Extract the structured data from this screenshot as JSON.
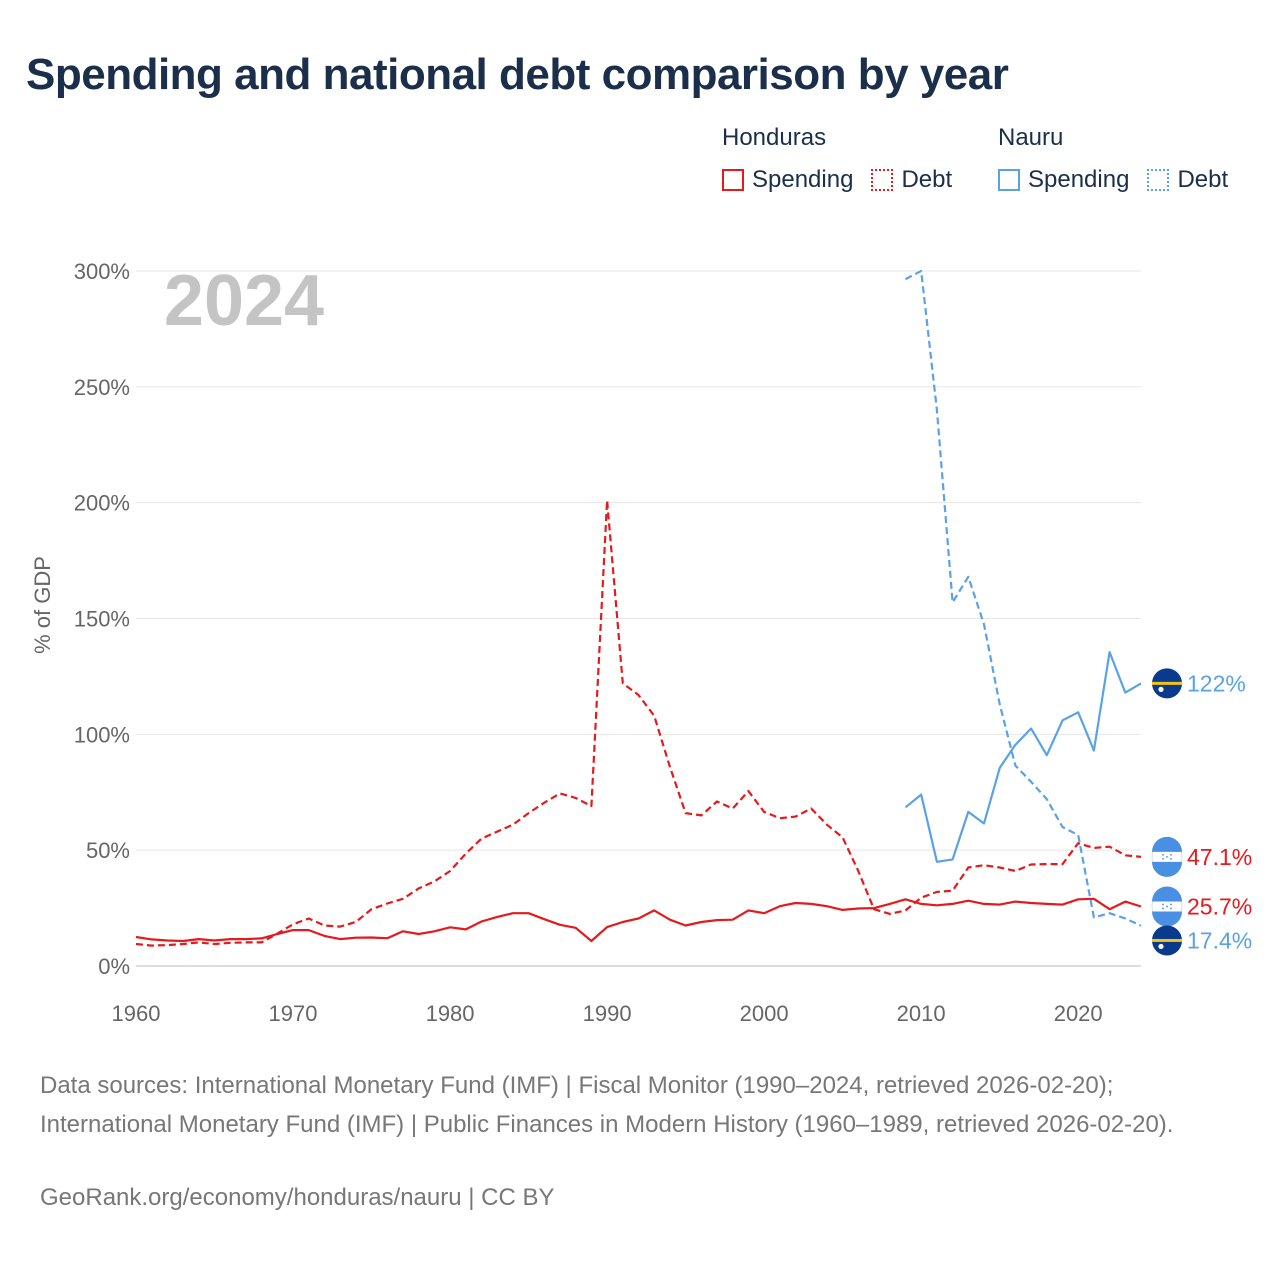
{
  "title": "Spending and national debt comparison by year",
  "legend": {
    "groups": [
      {
        "country": "Honduras",
        "color": "#e41a1c",
        "spending_label": "Spending",
        "debt_label": "Debt"
      },
      {
        "country": "Nauru",
        "color": "#5aa2e6",
        "spending_label": "Spending",
        "debt_label": "Debt"
      }
    ]
  },
  "year_watermark": "2024",
  "sources": "Data sources: International Monetary Fund (IMF) | Fiscal Monitor (1990–2024, retrieved 2026-02-20); International Monetary Fund (IMF) | Public Finances in Modern History (1960–1989, retrieved 2026-02-20).",
  "site": "GeoRank.org/economy/honduras/nauru | CC BY",
  "chart_data": {
    "type": "line",
    "ylabel": "% of GDP",
    "xlabel": "",
    "xlim": [
      1960,
      2024
    ],
    "ylim": [
      0,
      300
    ],
    "x_ticks": [
      1960,
      1970,
      1980,
      1990,
      2000,
      2010,
      2020
    ],
    "x_tick_labels": [
      "1960",
      "1970",
      "1980",
      "1990",
      "2000",
      "2010",
      "2020"
    ],
    "y_ticks": [
      0,
      50,
      100,
      150,
      200,
      250,
      300
    ],
    "y_tick_labels": [
      "0%",
      "50%",
      "100%",
      "150%",
      "200%",
      "250%",
      "300%"
    ],
    "grid": true,
    "series": [
      {
        "name": "Honduras Spending",
        "country": "Honduras",
        "kind": "spending",
        "dash": "solid",
        "color": "#e41a1c",
        "x": [
          1960,
          1961,
          1962,
          1963,
          1964,
          1965,
          1966,
          1967,
          1968,
          1969,
          1970,
          1971,
          1972,
          1973,
          1974,
          1975,
          1976,
          1977,
          1978,
          1979,
          1980,
          1981,
          1982,
          1983,
          1984,
          1985,
          1986,
          1987,
          1988,
          1989,
          1990,
          1991,
          1992,
          1993,
          1994,
          1995,
          1996,
          1997,
          1998,
          1999,
          2000,
          2001,
          2002,
          2003,
          2004,
          2005,
          2006,
          2007,
          2008,
          2009,
          2010,
          2011,
          2012,
          2013,
          2014,
          2015,
          2016,
          2017,
          2018,
          2019,
          2020,
          2021,
          2022,
          2023,
          2024
        ],
        "values": [
          12.5,
          11.5,
          11,
          10.8,
          11.6,
          11,
          11.6,
          11.6,
          11.9,
          13.8,
          15.5,
          15.5,
          13,
          11.6,
          12.2,
          12.3,
          12,
          15,
          13.8,
          15,
          16.7,
          15.8,
          19.2,
          21.2,
          22.8,
          22.8,
          20.2,
          17.8,
          16.5,
          10.8,
          16.8,
          19,
          20.5,
          24,
          20,
          17.5,
          19,
          19.8,
          20,
          24,
          22.8,
          25.8,
          27.2,
          26.8,
          25.8,
          24.2,
          24.8,
          25,
          26.8,
          28.8,
          26.8,
          26.2,
          26.8,
          28.2,
          26.8,
          26.5,
          27.8,
          27.2,
          26.8,
          26.5,
          28.8,
          29,
          24.5,
          27.8,
          25.7
        ]
      },
      {
        "name": "Honduras Debt",
        "country": "Honduras",
        "kind": "debt",
        "dash": "dashed",
        "color": "#e41a1c",
        "x": [
          1960,
          1961,
          1962,
          1963,
          1964,
          1965,
          1966,
          1967,
          1968,
          1969,
          1970,
          1971,
          1972,
          1973,
          1974,
          1975,
          1976,
          1977,
          1978,
          1979,
          1980,
          1981,
          1982,
          1983,
          1984,
          1985,
          1986,
          1987,
          1988,
          1989,
          1990,
          1991,
          1992,
          1993,
          1994,
          1995,
          1996,
          1997,
          1998,
          1999,
          2000,
          2001,
          2002,
          2003,
          2004,
          2005,
          2006,
          2007,
          2008,
          2009,
          2010,
          2011,
          2012,
          2013,
          2014,
          2015,
          2016,
          2017,
          2018,
          2019,
          2020,
          2021,
          2022,
          2023,
          2024
        ],
        "values": [
          9.5,
          8.8,
          9,
          9.5,
          10.2,
          9.5,
          10,
          10.2,
          10.2,
          14,
          18,
          20.5,
          17.5,
          17,
          19,
          24.5,
          27,
          29,
          33.5,
          36.5,
          41,
          48.5,
          55,
          58,
          61,
          66,
          70.5,
          74.5,
          72.5,
          69,
          201,
          122,
          117,
          108,
          86,
          66,
          65,
          71,
          68,
          75.5,
          66.5,
          63.8,
          64.5,
          68,
          61,
          55.5,
          41,
          24.5,
          22.5,
          24,
          29.5,
          32,
          32.5,
          42.5,
          43.5,
          42.5,
          41,
          43.8,
          44,
          44,
          53,
          51,
          51.5,
          47.8,
          47.1
        ]
      },
      {
        "name": "Nauru Spending",
        "country": "Nauru",
        "kind": "spending",
        "dash": "solid",
        "color": "#5aa2e6",
        "x": [
          2009,
          2010,
          2011,
          2012,
          2013,
          2014,
          2015,
          2016,
          2017,
          2018,
          2019,
          2020,
          2021,
          2022,
          2023,
          2024
        ],
        "values": [
          68.5,
          74,
          45,
          46,
          66.5,
          61.5,
          85.5,
          95.5,
          102.5,
          91,
          106,
          109.5,
          93,
          135.5,
          118,
          122
        ]
      },
      {
        "name": "Nauru Debt",
        "country": "Nauru",
        "kind": "debt",
        "dash": "dashed",
        "color": "#5aa2e6",
        "x": [
          2009,
          2010,
          2011,
          2012,
          2013,
          2014,
          2015,
          2016,
          2017,
          2018,
          2019,
          2020,
          2021,
          2022,
          2023,
          2024
        ],
        "values": [
          296.5,
          300,
          240,
          157,
          168,
          147.5,
          113,
          86.5,
          79.5,
          72,
          60,
          56.5,
          21,
          22.8,
          20.5,
          17.4
        ]
      }
    ],
    "end_labels": [
      {
        "series": "Nauru Spending",
        "text": "122%",
        "value": 122,
        "color": "#5aa2e6",
        "flag": "nauru-flag"
      },
      {
        "series": "Honduras Debt",
        "text": "47.1%",
        "value": 47.1,
        "color": "#e41a1c",
        "flag": "honduras-flag"
      },
      {
        "series": "Honduras Spending",
        "text": "25.7%",
        "value": 25.7,
        "color": "#e41a1c",
        "flag": "honduras-flag"
      },
      {
        "series": "Nauru Debt",
        "text": "17.4%",
        "value": 17.4,
        "color": "#5aa2e6",
        "flag": "nauru-flag"
      }
    ]
  }
}
